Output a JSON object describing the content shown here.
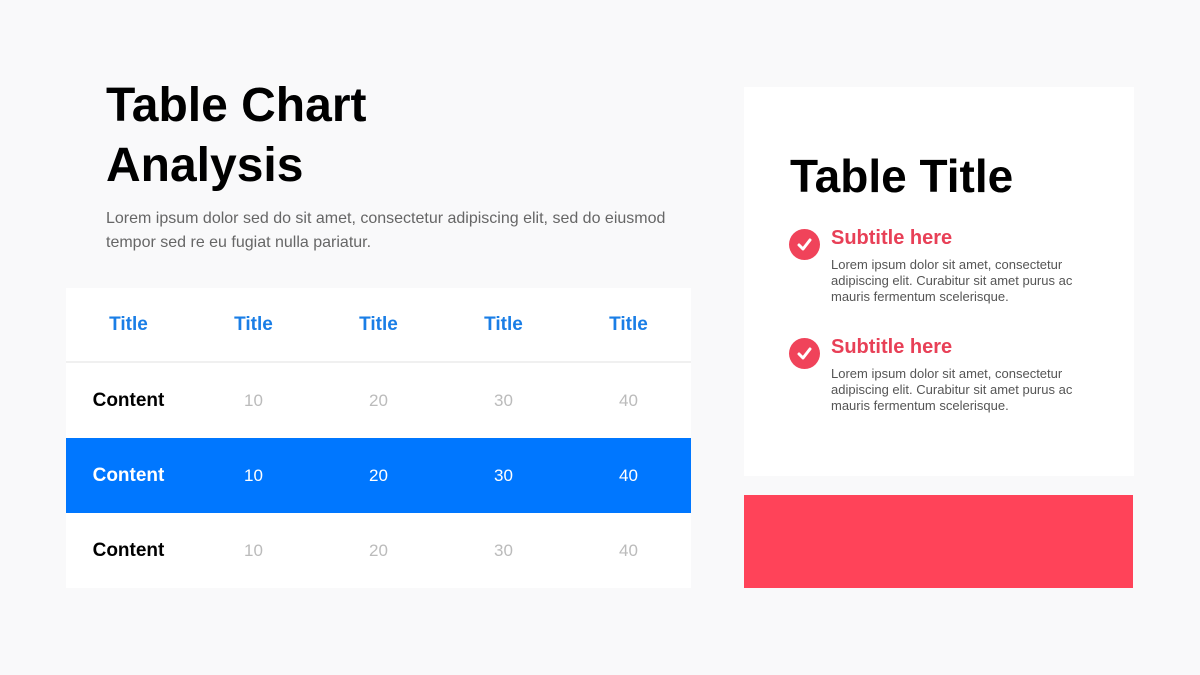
{
  "heading": "Table Chart Analysis",
  "description": "Lorem ipsum dolor sed do sit amet, consectetur adipiscing elit, sed do eiusmod tempor sed re eu fugiat nulla pariatur.",
  "chart_data": {
    "type": "table",
    "columns": [
      "Title",
      "Title",
      "Title",
      "Title",
      "Title"
    ],
    "rows": [
      [
        "Content",
        "10",
        "20",
        "30",
        "40"
      ],
      [
        "Content",
        "10",
        "20",
        "30",
        "40"
      ],
      [
        "Content",
        "10",
        "20",
        "30",
        "40"
      ]
    ],
    "highlighted_row": 1
  },
  "card": {
    "title": "Table Title",
    "items": [
      {
        "subtitle": "Subtitle here",
        "text": "Lorem ipsum dolor sit amet, consectetur adipiscing elit. Curabitur sit amet purus ac mauris fermentum scelerisque.",
        "icon": "check-circle-icon"
      },
      {
        "subtitle": "Subtitle here",
        "text": "Lorem ipsum dolor sit amet, consectetur adipiscing elit. Curabitur sit amet purus ac mauris fermentum scelerisque.",
        "icon": "check-circle-icon"
      }
    ]
  },
  "colors": {
    "accent_blue": "#0077ff",
    "accent_red": "#ff4359",
    "header_blue": "#1a7ee6"
  }
}
